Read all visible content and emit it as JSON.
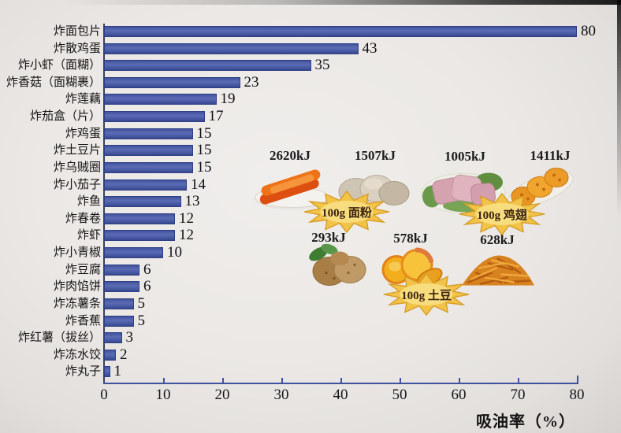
{
  "chart_data": {
    "type": "bar",
    "orientation": "horizontal",
    "categories": [
      "炸面包片",
      "炸散鸡蛋",
      "炸小虾（面糊）",
      "炸香菇（面糊裹）",
      "炸莲藕",
      "炸茄盒（片）",
      "炸鸡蛋",
      "炸土豆片",
      "炸乌贼圈",
      "炸小茄子",
      "炸鱼",
      "炸春卷",
      "炸虾",
      "炸小青椒",
      "炸豆腐",
      "炸肉馅饼",
      "炸冻薯条",
      "炸香蕉",
      "炸红薯（拔丝）",
      "炸冻水饺",
      "炸丸子"
    ],
    "values": [
      80,
      43,
      35,
      23,
      19,
      17,
      15,
      15,
      15,
      14,
      13,
      12,
      12,
      10,
      6,
      6,
      5,
      5,
      3,
      2,
      1
    ],
    "xlabel": "吸油率（%）",
    "xlim": [
      0,
      80
    ],
    "xticks": [
      0,
      10,
      20,
      30,
      40,
      50,
      60,
      70,
      80
    ],
    "grid": false,
    "bar_color": "#4c5ea9"
  },
  "inset": {
    "energies": {
      "fried_bread": "2620kJ",
      "mantou": "1507kJ",
      "chicken": "1005kJ",
      "wings": "1411kJ",
      "potato": "293kJ",
      "chips": "578kJ",
      "shoestring": "628kJ"
    },
    "badges": {
      "flour": "100g 面粉",
      "wings": "100g 鸡翅",
      "potato": "100g 土豆"
    }
  }
}
